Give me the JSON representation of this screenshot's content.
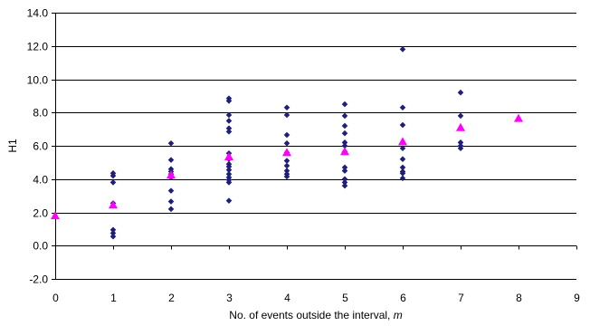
{
  "chart_data": {
    "type": "scatter",
    "title": "",
    "xlabel_main": "No. of events outside the interval, ",
    "xlabel_var": "m",
    "ylabel": "H1",
    "xlim": [
      0,
      9
    ],
    "ylim": [
      -2.0,
      14.0
    ],
    "x_ticks": [
      0,
      1,
      2,
      3,
      4,
      5,
      6,
      7,
      8,
      9
    ],
    "y_ticks": [
      -2.0,
      0.0,
      2.0,
      4.0,
      6.0,
      8.0,
      10.0,
      12.0,
      14.0
    ],
    "y_tick_labels": [
      "-2.0",
      "0.0",
      "2.0",
      "4.0",
      "6.0",
      "8.0",
      "10.0",
      "12.0",
      "14.0"
    ],
    "grid": "horizontal",
    "legend": "none",
    "series": [
      {
        "marker": "diamond",
        "color": "#1f1f7a",
        "points": [
          [
            1,
            4.35
          ],
          [
            1,
            4.2
          ],
          [
            1,
            3.8
          ],
          [
            1,
            2.55
          ],
          [
            1,
            0.95
          ],
          [
            1,
            0.75
          ],
          [
            1,
            0.55
          ],
          [
            2,
            6.15
          ],
          [
            2,
            5.15
          ],
          [
            2,
            4.6
          ],
          [
            2,
            4.45
          ],
          [
            2,
            4.3
          ],
          [
            2,
            4.1
          ],
          [
            2,
            3.3
          ],
          [
            2,
            2.65
          ],
          [
            2,
            2.2
          ],
          [
            3,
            8.85
          ],
          [
            3,
            8.7
          ],
          [
            3,
            7.85
          ],
          [
            3,
            7.5
          ],
          [
            3,
            7.05
          ],
          [
            3,
            6.85
          ],
          [
            3,
            5.55
          ],
          [
            3,
            5.2
          ],
          [
            3,
            4.9
          ],
          [
            3,
            4.75
          ],
          [
            3,
            4.55
          ],
          [
            3,
            4.3
          ],
          [
            3,
            4.1
          ],
          [
            3,
            3.95
          ],
          [
            3,
            3.8
          ],
          [
            3,
            2.7
          ],
          [
            4,
            8.3
          ],
          [
            4,
            7.85
          ],
          [
            4,
            6.65
          ],
          [
            4,
            6.15
          ],
          [
            4,
            5.6
          ],
          [
            4,
            5.1
          ],
          [
            4,
            4.8
          ],
          [
            4,
            4.5
          ],
          [
            4,
            4.3
          ],
          [
            4,
            4.15
          ],
          [
            5,
            8.5
          ],
          [
            5,
            7.8
          ],
          [
            5,
            7.2
          ],
          [
            5,
            6.75
          ],
          [
            5,
            6.2
          ],
          [
            5,
            6.0
          ],
          [
            5,
            5.65
          ],
          [
            5,
            4.7
          ],
          [
            5,
            4.5
          ],
          [
            5,
            4.0
          ],
          [
            5,
            3.8
          ],
          [
            5,
            3.6
          ],
          [
            6,
            11.8
          ],
          [
            6,
            8.3
          ],
          [
            6,
            7.25
          ],
          [
            6,
            5.85
          ],
          [
            6,
            5.2
          ],
          [
            6,
            4.7
          ],
          [
            6,
            4.45
          ],
          [
            6,
            4.35
          ],
          [
            6,
            4.05
          ],
          [
            7,
            9.2
          ],
          [
            7,
            7.8
          ],
          [
            7,
            6.2
          ],
          [
            7,
            6.0
          ],
          [
            7,
            5.85
          ]
        ]
      },
      {
        "marker": "triangle",
        "color": "#ff00ff",
        "points": [
          [
            0,
            1.8
          ],
          [
            1,
            2.45
          ],
          [
            2,
            4.25
          ],
          [
            3,
            5.35
          ],
          [
            4,
            5.6
          ],
          [
            5,
            5.65
          ],
          [
            6,
            6.25
          ],
          [
            7,
            7.1
          ],
          [
            8,
            7.65
          ]
        ]
      }
    ]
  }
}
